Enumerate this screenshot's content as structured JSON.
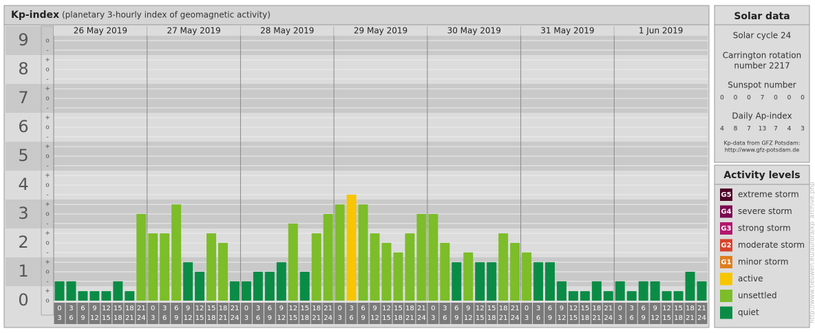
{
  "chart_data": {
    "type": "bar",
    "title": "Kp-index",
    "subtitle": "(planetary 3-hourly index of geomagnetic activity)",
    "days": [
      "26 May 2019",
      "27 May 2019",
      "28 May 2019",
      "29 May 2019",
      "30 May 2019",
      "31 May 2019",
      "1 Jun 2019"
    ],
    "hours_start": [
      "0",
      "3",
      "6",
      "9",
      "12",
      "15",
      "18",
      "21"
    ],
    "hours_end": [
      "3",
      "6",
      "9",
      "12",
      "15",
      "18",
      "21",
      "24"
    ],
    "values": [
      0.67,
      0.67,
      0.33,
      0.33,
      0.33,
      0.67,
      0.33,
      3,
      2.33,
      2.33,
      3.33,
      1.33,
      1,
      2.33,
      2,
      0.67,
      0.67,
      1,
      1,
      1.33,
      2.67,
      1,
      2.33,
      3,
      3.33,
      3.67,
      3.33,
      2.33,
      2,
      1.67,
      2.33,
      3,
      3,
      2,
      1.33,
      1.67,
      1.33,
      1.33,
      2.33,
      2,
      1.67,
      1.33,
      1.33,
      0.67,
      0.33,
      0.33,
      0.67,
      0.33,
      0.67,
      0.33,
      0.67,
      0.67,
      0.33,
      0.33,
      1,
      0.67
    ],
    "colors": [
      "#0a8c46",
      "#0a8c46",
      "#0a8c46",
      "#0a8c46",
      "#0a8c46",
      "#0a8c46",
      "#0a8c46",
      "#7cbd29",
      "#7cbd29",
      "#7cbd29",
      "#7cbd29",
      "#0a8c46",
      "#0a8c46",
      "#7cbd29",
      "#7cbd29",
      "#0a8c46",
      "#0a8c46",
      "#0a8c46",
      "#0a8c46",
      "#0a8c46",
      "#7cbd29",
      "#0a8c46",
      "#7cbd29",
      "#7cbd29",
      "#7cbd29",
      "#f7c600",
      "#7cbd29",
      "#7cbd29",
      "#7cbd29",
      "#7cbd29",
      "#7cbd29",
      "#7cbd29",
      "#7cbd29",
      "#7cbd29",
      "#0a8c46",
      "#7cbd29",
      "#0a8c46",
      "#0a8c46",
      "#7cbd29",
      "#7cbd29",
      "#7cbd29",
      "#0a8c46",
      "#0a8c46",
      "#0a8c46",
      "#0a8c46",
      "#0a8c46",
      "#0a8c46",
      "#0a8c46",
      "#0a8c46",
      "#0a8c46",
      "#0a8c46",
      "#0a8c46",
      "#0a8c46",
      "#0a8c46",
      "#0a8c46",
      "#0a8c46"
    ],
    "ylim": [
      0,
      9.5
    ],
    "yticks": [
      0,
      1,
      2,
      3,
      4,
      5,
      6,
      7,
      8,
      9
    ],
    "subticks": [
      {
        "value": 0,
        "label": "o"
      },
      {
        "value": 0.33,
        "label": "+"
      },
      {
        "value": 0.67,
        "label": "-"
      },
      {
        "value": 1,
        "label": "o"
      },
      {
        "value": 1.33,
        "label": "+"
      },
      {
        "value": 1.67,
        "label": "-"
      },
      {
        "value": 2,
        "label": "o"
      },
      {
        "value": 2.33,
        "label": "+"
      },
      {
        "value": 2.67,
        "label": "-"
      },
      {
        "value": 3,
        "label": "o"
      },
      {
        "value": 3.33,
        "label": "+"
      },
      {
        "value": 3.67,
        "label": "-"
      },
      {
        "value": 4,
        "label": "o"
      },
      {
        "value": 4.33,
        "label": "+"
      },
      {
        "value": 4.67,
        "label": "-"
      },
      {
        "value": 5,
        "label": "o"
      },
      {
        "value": 5.33,
        "label": "+"
      },
      {
        "value": 5.67,
        "label": "-"
      },
      {
        "value": 6,
        "label": "o"
      },
      {
        "value": 6.33,
        "label": "+"
      },
      {
        "value": 6.67,
        "label": "-"
      },
      {
        "value": 7,
        "label": "o"
      },
      {
        "value": 7.33,
        "label": "+"
      },
      {
        "value": 7.67,
        "label": "-"
      },
      {
        "value": 8,
        "label": "o"
      },
      {
        "value": 8.33,
        "label": "+"
      },
      {
        "value": 8.67,
        "label": "-"
      },
      {
        "value": 9,
        "label": "o"
      }
    ]
  },
  "solar": {
    "title": "Solar data",
    "cycle": "Solar cycle 24",
    "carrington_1": "Carrington rotation",
    "carrington_2": "number 2217",
    "sunspot_label": "Sunspot number",
    "sunspot": [
      "0",
      "0",
      "0",
      "7",
      "0",
      "0",
      "0"
    ],
    "ap_label": "Daily Ap-index",
    "ap": [
      "4",
      "8",
      "7",
      "13",
      "7",
      "4",
      "3"
    ],
    "credit": "Kp-data from GFZ Potsdam:",
    "url": "http://www.gfz-potsdam.de"
  },
  "activity": {
    "title": "Activity levels",
    "levels": [
      {
        "badge": "G5",
        "name": "extreme storm",
        "color": "#4f0026"
      },
      {
        "badge": "G4",
        "name": "severe storm",
        "color": "#7a0a50"
      },
      {
        "badge": "G3",
        "name": "strong storm",
        "color": "#b3166c"
      },
      {
        "badge": "G2",
        "name": "moderate storm",
        "color": "#d8422a"
      },
      {
        "badge": "G1",
        "name": "minor storm",
        "color": "#e07d1e"
      },
      {
        "badge": "",
        "name": "active",
        "color": "#f7c600"
      },
      {
        "badge": "",
        "name": "unsettled",
        "color": "#7cbd29"
      },
      {
        "badge": "",
        "name": "quiet",
        "color": "#0a8c46"
      }
    ]
  },
  "watermark": "http://www.tieuwen.eu/aurora/kp_archive.php"
}
